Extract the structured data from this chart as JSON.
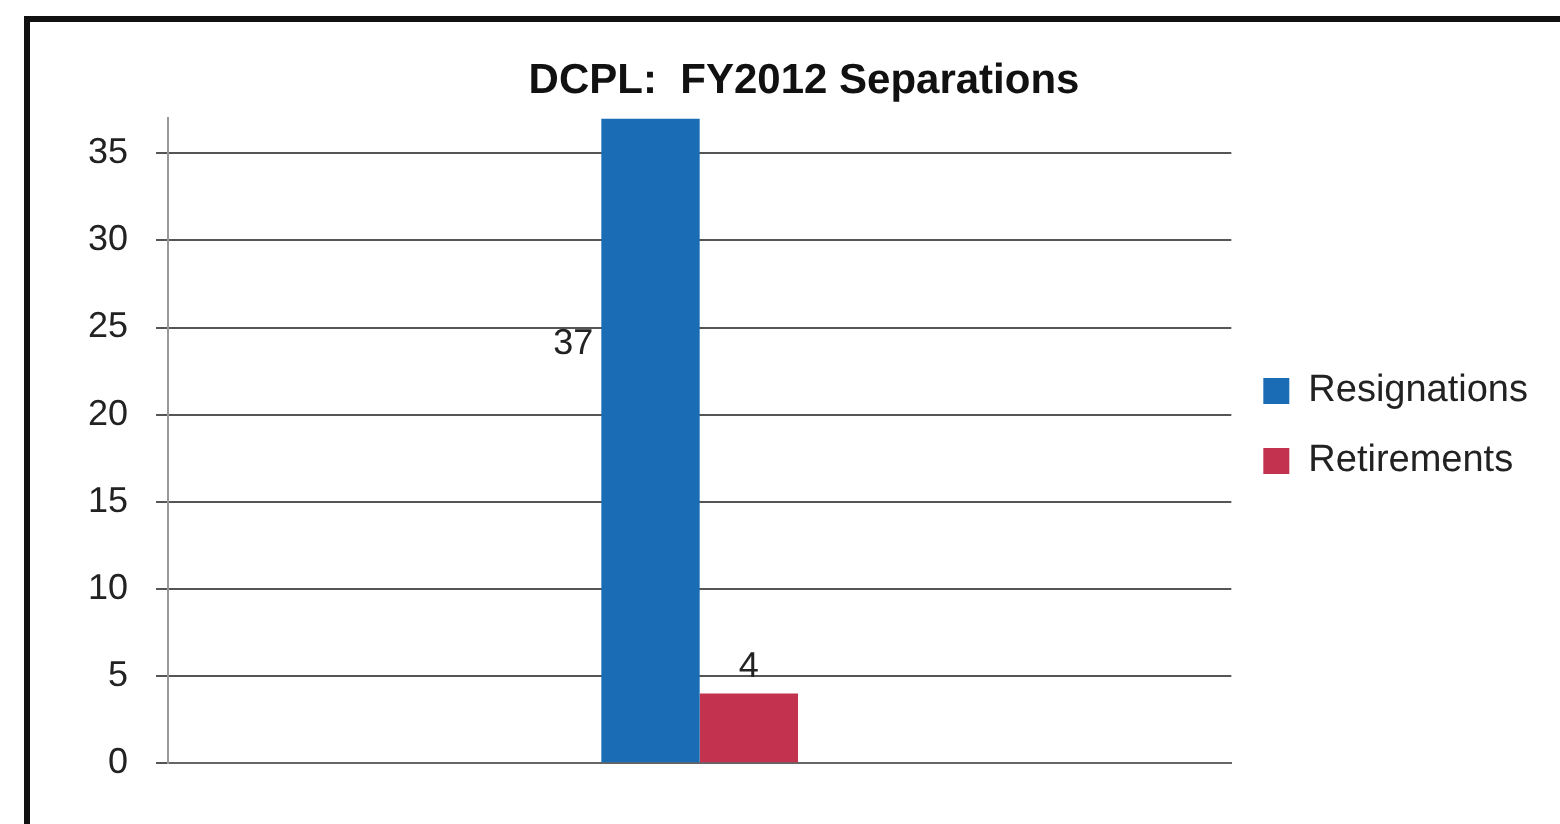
{
  "chart_data": {
    "type": "bar",
    "title": "DCPL:  FY2012 Separations",
    "categories": [
      null
    ],
    "series": [
      {
        "name": "Resignations",
        "color": "#1a6db5",
        "values": [
          37
        ]
      },
      {
        "name": "Retirements",
        "color": "#c3334f",
        "values": [
          4
        ]
      }
    ],
    "ylim": [
      0,
      37
    ],
    "yticks": [
      0,
      5,
      10,
      15,
      20,
      25,
      30,
      35
    ],
    "grid": "y",
    "legend": "right",
    "data_labels": true
  }
}
